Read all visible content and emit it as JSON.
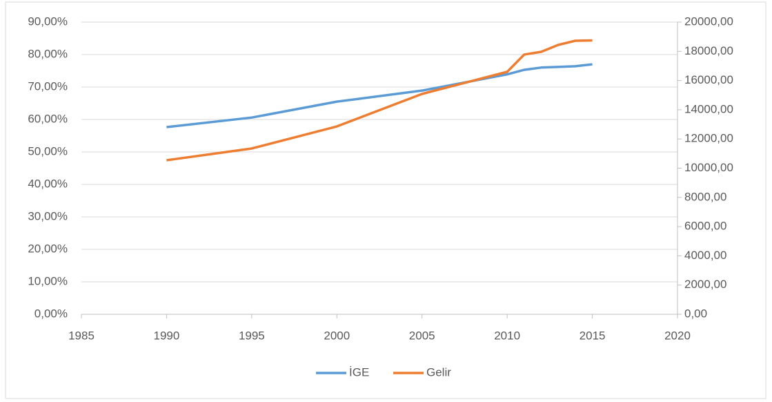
{
  "chart_data": {
    "type": "line",
    "x": [
      1990,
      1995,
      2000,
      2005,
      2010,
      2011,
      2012,
      2013,
      2014,
      2015
    ],
    "series": [
      {
        "name": "İGE",
        "color": "#5b9bd5",
        "values": [
          57.66,
          60.6,
          65.5,
          68.9,
          73.9,
          75.3,
          76.0,
          76.2,
          76.4,
          77.0
        ]
      },
      {
        "name": "Gelir",
        "color": "#ed7d31",
        "axis": "y2",
        "values": [
          10544,
          11348,
          12860,
          15083,
          16596,
          17778,
          17967,
          18440,
          18723,
          18747
        ]
      }
    ],
    "xlim": [
      1985,
      2020
    ],
    "xticks": [
      1985,
      1990,
      1995,
      2000,
      2005,
      2010,
      2015,
      2020
    ],
    "ylim": [
      0,
      90
    ],
    "yticks": [
      {
        "value": 0,
        "label": "0,00%"
      },
      {
        "value": 10,
        "label": "10,00%"
      },
      {
        "value": 20,
        "label": "20,00%"
      },
      {
        "value": 30,
        "label": "30,00%"
      },
      {
        "value": 40,
        "label": "40,00%"
      },
      {
        "value": 50,
        "label": "50,00%"
      },
      {
        "value": 60,
        "label": "60,00%"
      },
      {
        "value": 70,
        "label": "70,00%"
      },
      {
        "value": 80,
        "label": "80,00%"
      },
      {
        "value": 90,
        "label": "90,00%"
      }
    ],
    "y2lim": [
      0,
      20000
    ],
    "y2ticks": [
      {
        "value": 0,
        "label": "0,00"
      },
      {
        "value": 2000,
        "label": "2000,00"
      },
      {
        "value": 4000,
        "label": "4000,00"
      },
      {
        "value": 6000,
        "label": "6000,00"
      },
      {
        "value": 8000,
        "label": "8000,00"
      },
      {
        "value": 10000,
        "label": "10000,00"
      },
      {
        "value": 12000,
        "label": "12000,00"
      },
      {
        "value": 14000,
        "label": "14000,00"
      },
      {
        "value": 16000,
        "label": "16000,00"
      },
      {
        "value": 18000,
        "label": "18000,00"
      },
      {
        "value": 20000,
        "label": "20000,00"
      }
    ],
    "grid": true,
    "legend": "bottom"
  }
}
